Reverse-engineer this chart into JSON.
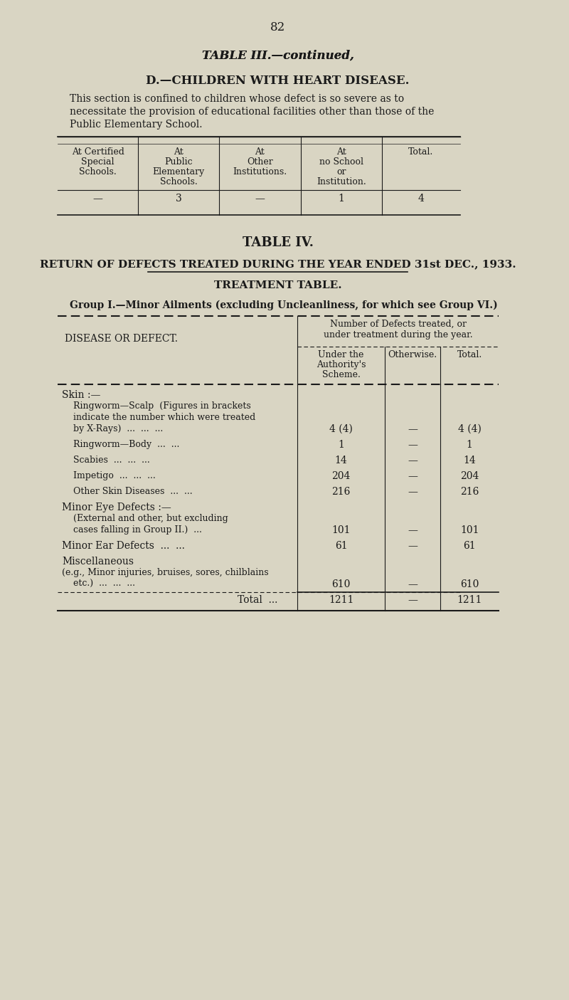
{
  "bg_color": "#d9d5c3",
  "text_color": "#1a1a1a",
  "page_number": "82",
  "table3_title": "TABLE III.—continued,",
  "table3_subtitle": "D.—CHILDREN WITH HEART DISEASE.",
  "table3_description": "This section is confined to children whose defect is so severe as to\nnecessitate the provision of educational facilities other than those of the\nPublic Elementary School.",
  "table3_col_headers": [
    "At Certified\nSpecial\nSchools.",
    "At\nPublic\nElementary\nSchools.",
    "At\nOther\nInstitutions.",
    "At\nno School\nor\nInstitution.",
    "Total."
  ],
  "table3_data": [
    "—",
    "3",
    "—",
    "1",
    "4"
  ],
  "table4_title": "TABLE IV.",
  "table4_subtitle": "RETURN OF DEFECTS TREATED DURING THE YEAR ENDED 31st DEC., 1933.",
  "table4_treatment": "TREATMENT TABLE.",
  "table4_group": "Group I.—Minor Ailments (excluding Uncleanliness, for which see Group VI.)",
  "table4_col_header1": "Number of Defects treated, or\nunder treatment during the year.",
  "table4_col_header2a": "Under the\nAuthority's\nScheme.",
  "table4_col_header2b": "Otherwise.",
  "table4_col_header2c": "Total.",
  "table4_left_header": "DISEASE OR DEFECT.",
  "table4_rows": [
    {
      "label_lines": [
        "Skin :—",
        "    Ringworm—Scalp  (Figures in brackets",
        "    indicate the number which were treated",
        "    by X-Rays)  ...  ...  ..."
      ],
      "authority": "4 (4)",
      "otherwise": "—",
      "total": "4 (4)"
    },
    {
      "label_lines": [
        "    Ringworm—Body  ...  ..."
      ],
      "authority": "1",
      "otherwise": "—",
      "total": "1"
    },
    {
      "label_lines": [
        "    Scabies  ...  ...  ..."
      ],
      "authority": "14",
      "otherwise": "—",
      "total": "14"
    },
    {
      "label_lines": [
        "    Impetigo  ...  ...  ..."
      ],
      "authority": "204",
      "otherwise": "—",
      "total": "204"
    },
    {
      "label_lines": [
        "    Other Skin Diseases  ...  ..."
      ],
      "authority": "216",
      "otherwise": "—",
      "total": "216"
    },
    {
      "label_lines": [
        "Minor Eye Defects :—",
        "    (External and other, but excluding",
        "    cases falling in Group II.)  ..."
      ],
      "authority": "101",
      "otherwise": "—",
      "total": "101"
    },
    {
      "label_lines": [
        "Minor Ear Defects  ...  ..."
      ],
      "authority": "61",
      "otherwise": "—",
      "total": "61"
    },
    {
      "label_lines": [
        "Miscellaneous",
        "(e.g., Minor injuries, bruises, sores, chilblains",
        "    etc.)  ...  ...  ..."
      ],
      "authority": "610",
      "otherwise": "—",
      "total": "610"
    },
    {
      "label_lines": [
        "Total  ..."
      ],
      "authority": "1211",
      "otherwise": "—",
      "total": "1211",
      "is_total": true
    }
  ]
}
